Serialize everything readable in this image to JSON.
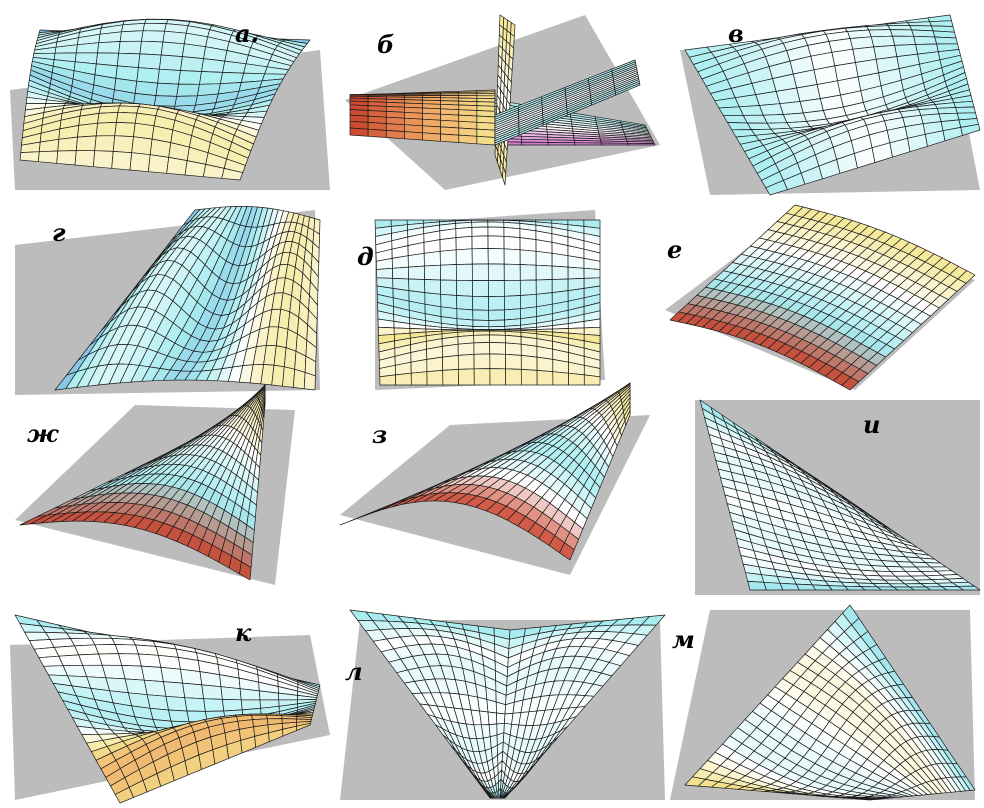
{
  "panels": [
    {
      "label": "а."
    },
    {
      "label": "б"
    },
    {
      "label": "в"
    },
    {
      "label": "г"
    },
    {
      "label": "д"
    },
    {
      "label": "е"
    },
    {
      "label": "ж"
    },
    {
      "label": "з"
    },
    {
      "label": "и"
    },
    {
      "label": "к"
    },
    {
      "label": "л"
    },
    {
      "label": "м"
    }
  ],
  "colors": {
    "shadow": "#bcbcbc",
    "grid": "#1a1a1a",
    "blue": "#2a56c8",
    "cyan": "#a8ecf0",
    "white": "#ffffff",
    "yellow": "#f4e690",
    "orange": "#f0a060",
    "red": "#c8402a",
    "pink": "#d070c8"
  }
}
